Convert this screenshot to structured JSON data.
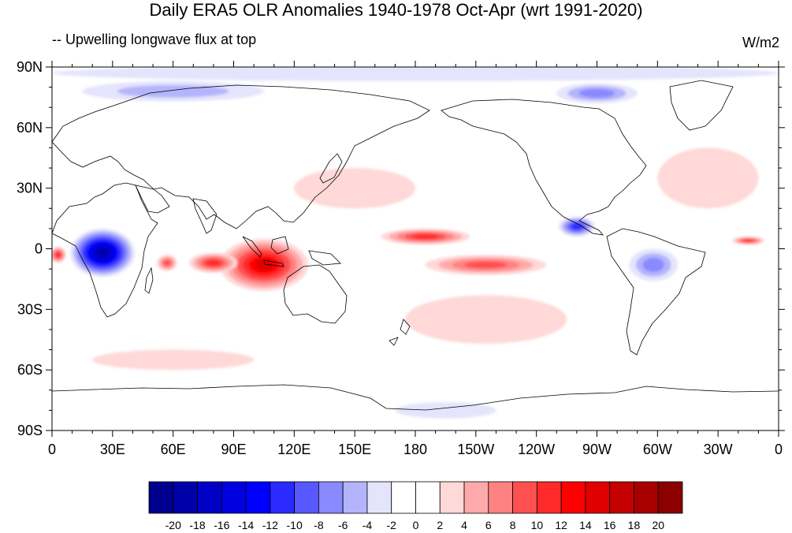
{
  "title": "Daily ERA5 OLR Anomalies 1940-1978 Oct-Apr (wrt 1991-2020)",
  "subtitle": "-- Upwelling longwave flux at top",
  "units": "W/m2",
  "map": {
    "projection": "cylindrical-equidistant",
    "lon_range": [
      0,
      360
    ],
    "lat_range": [
      -90,
      90
    ],
    "x_ticks": [
      {
        "lon": 0,
        "label": "0"
      },
      {
        "lon": 30,
        "label": "30E"
      },
      {
        "lon": 60,
        "label": "60E"
      },
      {
        "lon": 90,
        "label": "90E"
      },
      {
        "lon": 120,
        "label": "120E"
      },
      {
        "lon": 150,
        "label": "150E"
      },
      {
        "lon": 180,
        "label": "180"
      },
      {
        "lon": 210,
        "label": "150W"
      },
      {
        "lon": 240,
        "label": "120W"
      },
      {
        "lon": 270,
        "label": "90W"
      },
      {
        "lon": 300,
        "label": "60W"
      },
      {
        "lon": 330,
        "label": "30W"
      },
      {
        "lon": 360,
        "label": "0"
      }
    ],
    "y_ticks": [
      {
        "lat": 90,
        "label": "90N"
      },
      {
        "lat": 60,
        "label": "60N"
      },
      {
        "lat": 30,
        "label": "30N"
      },
      {
        "lat": 0,
        "label": "0"
      },
      {
        "lat": -30,
        "label": "30S"
      },
      {
        "lat": -60,
        "label": "60S"
      },
      {
        "lat": -90,
        "label": "90S"
      }
    ],
    "anomaly_regions": [
      {
        "name": "central-africa",
        "lon": 25,
        "lat": -2,
        "rlon": 16,
        "rlat": 12,
        "value": -18
      },
      {
        "name": "arctic-north",
        "lon": 180,
        "lat": 87,
        "rlon": 180,
        "rlat": 4,
        "value": -2
      },
      {
        "name": "arctic-siberia",
        "lon": 60,
        "lat": 78,
        "rlon": 45,
        "rlat": 5,
        "value": -4
      },
      {
        "name": "canada-arctic",
        "lon": 270,
        "lat": 77,
        "rlon": 20,
        "rlat": 5,
        "value": -6
      },
      {
        "name": "antarctic-ross",
        "lon": 195,
        "lat": -80,
        "rlon": 25,
        "rlat": 4,
        "value": -3
      },
      {
        "name": "maritime-continent",
        "lon": 105,
        "lat": -8,
        "rlon": 22,
        "rlat": 13,
        "value": 14
      },
      {
        "name": "east-indian-ocean",
        "lon": 80,
        "lat": -7,
        "rlon": 12,
        "rlat": 5,
        "value": 10
      },
      {
        "name": "west-indian-ocean",
        "lon": 57,
        "lat": -7,
        "rlon": 5,
        "rlat": 4,
        "value": 8
      },
      {
        "name": "central-pacific-north",
        "lon": 185,
        "lat": 6,
        "rlon": 22,
        "rlat": 4,
        "value": 10
      },
      {
        "name": "central-pacific-south",
        "lon": 215,
        "lat": -8,
        "rlon": 30,
        "rlat": 5,
        "value": 8
      },
      {
        "name": "east-pacific-itcz",
        "lon": 260,
        "lat": 11,
        "rlon": 9,
        "rlat": 5,
        "value": -10
      },
      {
        "name": "amazon",
        "lon": 298,
        "lat": -8,
        "rlon": 12,
        "rlat": 8,
        "value": -6
      },
      {
        "name": "atlantic-itcz",
        "lon": 345,
        "lat": 4,
        "rlon": 8,
        "rlat": 2,
        "value": 10
      },
      {
        "name": "gulf-of-guinea",
        "lon": 3,
        "lat": -3,
        "rlon": 4,
        "rlat": 4,
        "value": 10
      },
      {
        "name": "south-pacific",
        "lon": 215,
        "lat": -35,
        "rlon": 40,
        "rlat": 12,
        "value": 3
      },
      {
        "name": "north-pacific",
        "lon": 150,
        "lat": 30,
        "rlon": 30,
        "rlat": 10,
        "value": 2
      },
      {
        "name": "north-atlantic",
        "lon": 325,
        "lat": 35,
        "rlon": 25,
        "rlat": 15,
        "value": 3
      },
      {
        "name": "southern-ocean",
        "lon": 60,
        "lat": -55,
        "rlon": 40,
        "rlat": 5,
        "value": 3
      }
    ]
  },
  "colorbar": {
    "labels": [
      "-20",
      "-18",
      "-16",
      "-14",
      "-12",
      "-10",
      "-8",
      "-6",
      "-4",
      "-2",
      "0",
      "2",
      "4",
      "6",
      "8",
      "10",
      "12",
      "14",
      "16",
      "18",
      "20"
    ],
    "colors": [
      "#00008f",
      "#0000aa",
      "#0000c6",
      "#0000e0",
      "#0000ff",
      "#2a2aff",
      "#5858ff",
      "#8a8aff",
      "#b4b4fc",
      "#e4e4fc",
      "#ffffff",
      "#ffffff",
      "#ffd8d8",
      "#ffaaaa",
      "#ff8282",
      "#ff5050",
      "#ff2a2a",
      "#ff0000",
      "#e00000",
      "#c40000",
      "#a80000",
      "#8c0000"
    ]
  }
}
